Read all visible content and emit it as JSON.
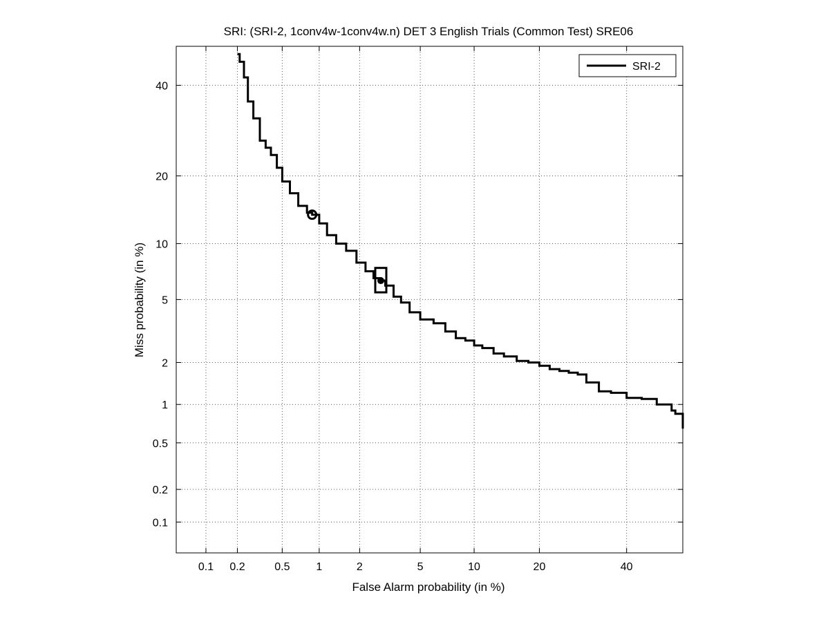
{
  "chart_data": {
    "type": "line",
    "title": "SRI: (SRI-2, 1conv4w-1conv4w.n) DET 3 English Trials (Common Test) SRE06",
    "xlabel": "False Alarm probability (in %)",
    "ylabel": "Miss probability (in %)",
    "x_scale": "probit",
    "y_scale": "probit",
    "xlim": [
      0.05,
      55
    ],
    "ylim": [
      0.05,
      50
    ],
    "x_ticks": [
      0.1,
      0.2,
      0.5,
      1,
      2,
      5,
      10,
      20,
      40
    ],
    "x_tick_labels": [
      "0.1",
      "0.2",
      "0.5",
      "1",
      "2",
      "5",
      "10",
      "20",
      "40"
    ],
    "y_ticks": [
      0.1,
      0.2,
      0.5,
      1,
      2,
      5,
      10,
      20,
      40
    ],
    "y_tick_labels": [
      "0.1",
      "0.2",
      "0.5",
      "1",
      "2",
      "5",
      "10",
      "20",
      "40"
    ],
    "grid": true,
    "legend_position": "top-right",
    "series": [
      {
        "name": "SRI-2",
        "color": "#000000",
        "x": [
          0.2,
          0.21,
          0.23,
          0.25,
          0.28,
          0.32,
          0.36,
          0.4,
          0.45,
          0.5,
          0.58,
          0.68,
          0.8,
          0.88,
          1.0,
          1.15,
          1.35,
          1.6,
          1.9,
          2.2,
          2.5,
          2.8,
          3.0,
          3.4,
          3.8,
          4.3,
          5.0,
          6.0,
          7.0,
          8.0,
          9.0,
          10.0,
          11.0,
          12.5,
          14.0,
          16.0,
          18.0,
          20.0,
          22.0,
          24.0,
          26.0,
          28.0,
          30.0,
          33.0,
          36.0,
          40.0,
          44.0,
          48.0,
          52.0,
          53.0,
          55.0
        ],
        "y": [
          48.0,
          46.0,
          42.0,
          36.0,
          32.0,
          27.0,
          25.5,
          24.0,
          21.5,
          19.0,
          17.0,
          15.0,
          14.0,
          13.7,
          12.5,
          11.0,
          10.0,
          9.2,
          8.0,
          7.2,
          6.6,
          6.4,
          6.0,
          5.2,
          4.8,
          4.2,
          3.8,
          3.6,
          3.2,
          2.9,
          2.8,
          2.6,
          2.5,
          2.3,
          2.2,
          2.05,
          2.0,
          1.9,
          1.8,
          1.75,
          1.7,
          1.65,
          1.45,
          1.25,
          1.22,
          1.12,
          1.1,
          1.0,
          0.9,
          0.85,
          0.65
        ]
      }
    ],
    "markers": [
      {
        "shape": "circle",
        "x": 0.88,
        "y": 13.7
      },
      {
        "shape": "box",
        "x": 2.8,
        "y": 6.4,
        "y_low": 5.5,
        "y_high": 7.5
      },
      {
        "shape": "dot",
        "x": 2.8,
        "y": 6.4
      }
    ]
  }
}
